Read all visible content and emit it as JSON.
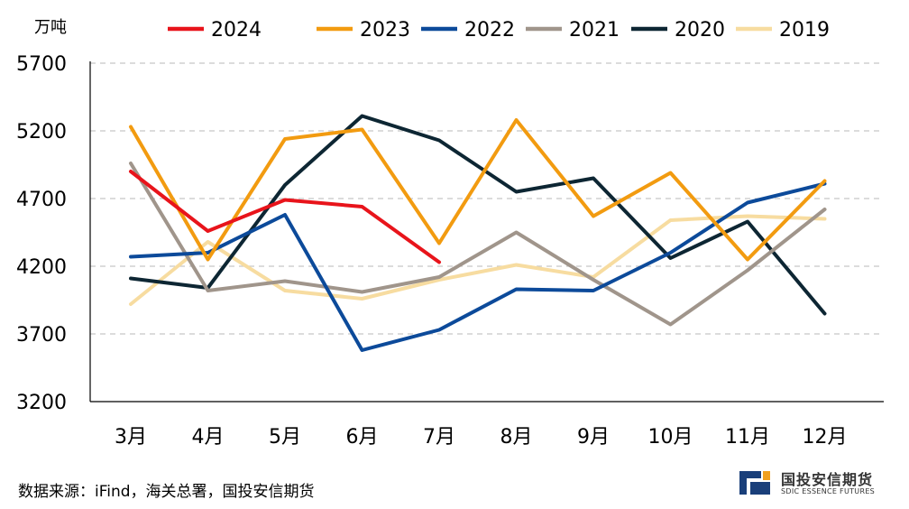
{
  "unit_label": "万吨",
  "source": "数据来源：iFind，海关总署，国投安信期货",
  "logo": {
    "cn": "国投安信期货",
    "en": "SDIC ESSENCE FUTURES"
  },
  "chart_data": {
    "type": "line",
    "title": "",
    "xlabel": "",
    "ylabel": "万吨",
    "categories": [
      "3月",
      "4月",
      "5月",
      "6月",
      "7月",
      "8月",
      "9月",
      "10月",
      "11月",
      "12月"
    ],
    "ylim": [
      3200,
      5700
    ],
    "yticks": [
      3200,
      3700,
      4200,
      4700,
      5200,
      5700
    ],
    "grid": true,
    "legend_position": "top",
    "series": [
      {
        "name": "2024",
        "color": "#e8141b",
        "values": [
          4900,
          4460,
          4690,
          4640,
          4230,
          null,
          null,
          null,
          null,
          null
        ]
      },
      {
        "name": "2023",
        "color": "#f29b10",
        "values": [
          5230,
          4250,
          5140,
          5210,
          4370,
          5280,
          4570,
          4890,
          4250,
          4830
        ]
      },
      {
        "name": "2022",
        "color": "#0c4a9a",
        "values": [
          4270,
          4300,
          4580,
          3580,
          3730,
          4030,
          4020,
          4300,
          4670,
          4810
        ]
      },
      {
        "name": "2021",
        "color": "#a0958b",
        "values": [
          4960,
          4020,
          4090,
          4010,
          4120,
          4450,
          4100,
          3770,
          4170,
          4620
        ]
      },
      {
        "name": "2020",
        "color": "#0d2633",
        "values": [
          4110,
          4040,
          4800,
          5310,
          5130,
          4750,
          4850,
          4260,
          4530,
          3850
        ]
      },
      {
        "name": "2019",
        "color": "#f7dca0",
        "values": [
          3920,
          4380,
          4020,
          3960,
          4100,
          4210,
          4120,
          4540,
          4570,
          4550
        ]
      }
    ]
  }
}
